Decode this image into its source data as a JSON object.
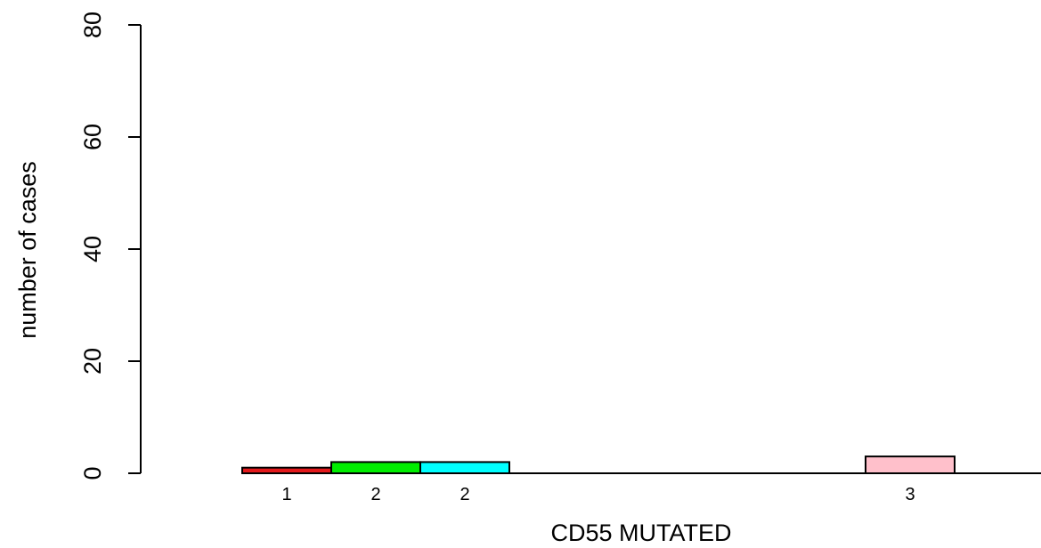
{
  "chart_data": {
    "type": "bar",
    "title": "",
    "xlabel": "CD55 MUTATED",
    "ylabel": "number of cases",
    "ylim": [
      0,
      80
    ],
    "y_ticks": [
      "0",
      "20",
      "40",
      "60",
      "80"
    ],
    "grid": false,
    "legend": "none",
    "bars": [
      {
        "label": "1",
        "value": 1,
        "color": "#e31a1c"
      },
      {
        "label": "2",
        "value": 2,
        "color": "#00ee00"
      },
      {
        "label": "2",
        "value": 2,
        "color": "#00ffff"
      },
      {
        "label": "",
        "value": 0,
        "color": "#ffffff"
      },
      {
        "label": "",
        "value": 0,
        "color": "#ffffff"
      },
      {
        "label": "",
        "value": 0,
        "color": "#ffffff"
      },
      {
        "label": "",
        "value": 0,
        "color": "#ffffff"
      },
      {
        "label": "3",
        "value": 3,
        "color": "#ffc0cb"
      }
    ]
  }
}
